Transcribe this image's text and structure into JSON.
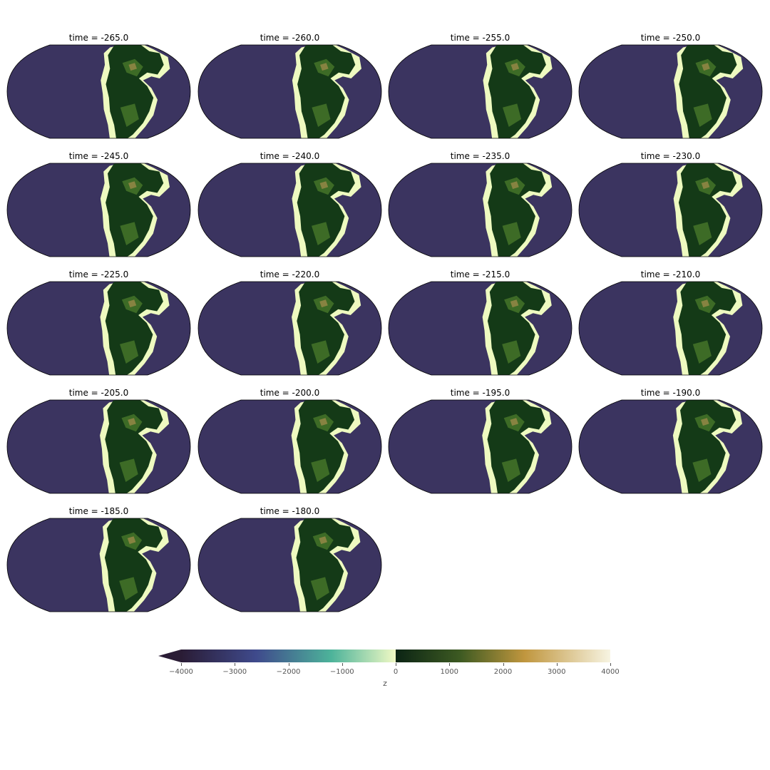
{
  "panels": [
    {
      "title": "time = -265.0"
    },
    {
      "title": "time = -260.0"
    },
    {
      "title": "time = -255.0"
    },
    {
      "title": "time = -250.0"
    },
    {
      "title": "time = -245.0"
    },
    {
      "title": "time = -240.0"
    },
    {
      "title": "time = -235.0"
    },
    {
      "title": "time = -230.0"
    },
    {
      "title": "time = -225.0"
    },
    {
      "title": "time = -220.0"
    },
    {
      "title": "time = -215.0"
    },
    {
      "title": "time = -210.0"
    },
    {
      "title": "time = -205.0"
    },
    {
      "title": "time = -200.0"
    },
    {
      "title": "time = -195.0"
    },
    {
      "title": "time = -190.0"
    },
    {
      "title": "time = -185.0"
    },
    {
      "title": "time = -180.0"
    }
  ],
  "colorbar": {
    "label": "z",
    "ticks": [
      "−4000",
      "−3000",
      "−2000",
      "−1000",
      "0",
      "1000",
      "2000",
      "3000",
      "4000"
    ],
    "range": [
      -4000,
      4000
    ],
    "extend": "min"
  },
  "colors": {
    "ocean_deep": "#3b3460",
    "shelf": "#eefac0",
    "land_low": "#143a17",
    "land_mid": "#3d6b26",
    "highland": "#9a8a48"
  }
}
